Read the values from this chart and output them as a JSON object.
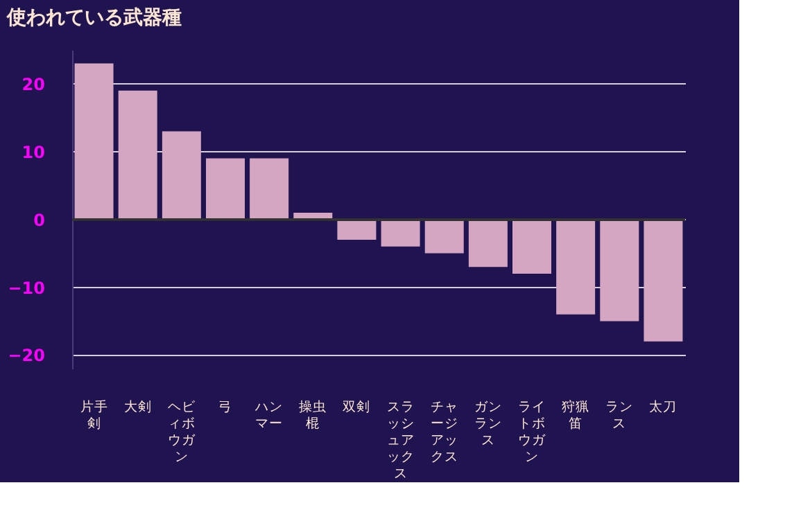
{
  "chart_data": {
    "type": "bar",
    "title": "使われている武器種",
    "categories": [
      "片手剣",
      "大剣",
      "ヘビィボウガン",
      "弓",
      "ハンマー",
      "操虫棍",
      "双剣",
      "スラッシュアックス",
      "チャージアックス",
      "ガンランス",
      "ライトボウガン",
      "狩猟笛",
      "ランス",
      "太刀"
    ],
    "values": [
      23,
      19,
      13,
      9,
      9,
      1,
      -3,
      -4,
      -5,
      -7,
      -8,
      -14,
      -15,
      -18
    ],
    "color": "#d5a6c1",
    "ylim": [
      -22,
      25
    ],
    "yticks": [
      -20,
      -10,
      0,
      10,
      20
    ],
    "grid": "y",
    "ref_lines": [
      {
        "axis": "y",
        "value": 0,
        "color": "#333333"
      }
    ]
  }
}
